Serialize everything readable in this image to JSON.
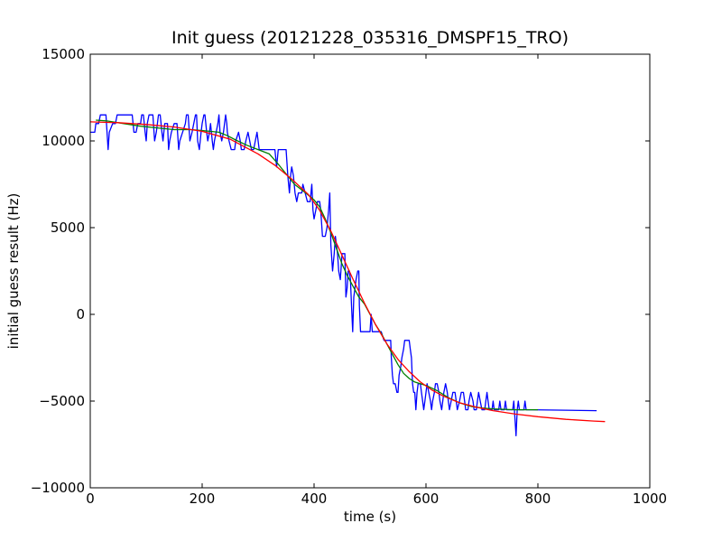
{
  "chart_data": {
    "type": "line",
    "title": "Init guess (20121228_035316_DMSPF15_TRO)",
    "xlabel": "time (s)",
    "ylabel": "initial guess result (Hz)",
    "xlim": [
      0,
      1000
    ],
    "ylim": [
      -10000,
      15000
    ],
    "xticks": [
      0,
      200,
      400,
      600,
      800,
      1000
    ],
    "yticks": [
      -10000,
      -5000,
      0,
      5000,
      10000,
      15000
    ],
    "grid": false,
    "colors": {
      "raw": "#0000ff",
      "smooth": "#008000",
      "fit": "#ff0000"
    },
    "series": [
      {
        "color": "#0000ff",
        "points": [
          [
            0,
            10500
          ],
          [
            8,
            10500
          ],
          [
            10,
            11000
          ],
          [
            15,
            11000
          ],
          [
            18,
            11500
          ],
          [
            28,
            11500
          ],
          [
            30,
            10500
          ],
          [
            32,
            9500
          ],
          [
            34,
            10500
          ],
          [
            40,
            11000
          ],
          [
            45,
            11000
          ],
          [
            48,
            11500
          ],
          [
            75,
            11500
          ],
          [
            78,
            10500
          ],
          [
            82,
            10500
          ],
          [
            85,
            11000
          ],
          [
            90,
            11000
          ],
          [
            92,
            11500
          ],
          [
            95,
            11500
          ],
          [
            98,
            10500
          ],
          [
            100,
            10000
          ],
          [
            102,
            11000
          ],
          [
            105,
            11500
          ],
          [
            112,
            11500
          ],
          [
            115,
            10000
          ],
          [
            118,
            10500
          ],
          [
            120,
            11000
          ],
          [
            122,
            11500
          ],
          [
            125,
            11500
          ],
          [
            128,
            10500
          ],
          [
            130,
            10000
          ],
          [
            133,
            11000
          ],
          [
            138,
            11000
          ],
          [
            140,
            9500
          ],
          [
            142,
            10000
          ],
          [
            145,
            10500
          ],
          [
            150,
            11000
          ],
          [
            155,
            11000
          ],
          [
            158,
            9500
          ],
          [
            160,
            10000
          ],
          [
            165,
            10500
          ],
          [
            170,
            11000
          ],
          [
            172,
            11500
          ],
          [
            175,
            11500
          ],
          [
            178,
            10000
          ],
          [
            182,
            10500
          ],
          [
            185,
            11000
          ],
          [
            188,
            11500
          ],
          [
            190,
            11500
          ],
          [
            192,
            10000
          ],
          [
            195,
            9500
          ],
          [
            198,
            10500
          ],
          [
            200,
            11000
          ],
          [
            203,
            11500
          ],
          [
            205,
            11500
          ],
          [
            208,
            10500
          ],
          [
            210,
            10000
          ],
          [
            213,
            10500
          ],
          [
            215,
            11000
          ],
          [
            218,
            10000
          ],
          [
            220,
            9500
          ],
          [
            222,
            10000
          ],
          [
            225,
            10500
          ],
          [
            228,
            11000
          ],
          [
            230,
            11500
          ],
          [
            232,
            10500
          ],
          [
            235,
            10000
          ],
          [
            238,
            10500
          ],
          [
            240,
            11000
          ],
          [
            242,
            11500
          ],
          [
            244,
            11000
          ],
          [
            245,
            10500
          ],
          [
            248,
            10000
          ],
          [
            252,
            9500
          ],
          [
            258,
            9500
          ],
          [
            260,
            10000
          ],
          [
            265,
            10500
          ],
          [
            268,
            10000
          ],
          [
            270,
            9500
          ],
          [
            275,
            9500
          ],
          [
            278,
            10000
          ],
          [
            282,
            10500
          ],
          [
            285,
            10000
          ],
          [
            288,
            9500
          ],
          [
            292,
            9500
          ],
          [
            295,
            10000
          ],
          [
            298,
            10500
          ],
          [
            300,
            10000
          ],
          [
            302,
            9500
          ],
          [
            330,
            9500
          ],
          [
            333,
            8500
          ],
          [
            336,
            9500
          ],
          [
            350,
            9500
          ],
          [
            353,
            8000
          ],
          [
            356,
            7000
          ],
          [
            358,
            8000
          ],
          [
            360,
            8500
          ],
          [
            363,
            8000
          ],
          [
            366,
            7000
          ],
          [
            369,
            6500
          ],
          [
            372,
            7000
          ],
          [
            378,
            7000
          ],
          [
            380,
            7500
          ],
          [
            384,
            7000
          ],
          [
            388,
            6500
          ],
          [
            393,
            6500
          ],
          [
            396,
            7500
          ],
          [
            398,
            6000
          ],
          [
            400,
            5500
          ],
          [
            403,
            6000
          ],
          [
            406,
            6500
          ],
          [
            410,
            6500
          ],
          [
            412,
            6000
          ],
          [
            415,
            4500
          ],
          [
            418,
            4500
          ],
          [
            420,
            4500
          ],
          [
            423,
            5000
          ],
          [
            426,
            6000
          ],
          [
            428,
            7000
          ],
          [
            430,
            4000
          ],
          [
            433,
            2500
          ],
          [
            436,
            3500
          ],
          [
            438,
            4500
          ],
          [
            440,
            4000
          ],
          [
            442,
            3500
          ],
          [
            444,
            2500
          ],
          [
            447,
            2000
          ],
          [
            450,
            3500
          ],
          [
            455,
            3500
          ],
          [
            457,
            1000
          ],
          [
            459,
            1500
          ],
          [
            461,
            2500
          ],
          [
            463,
            2500
          ],
          [
            465,
            2000
          ],
          [
            467,
            500
          ],
          [
            469,
            -1000
          ],
          [
            471,
            1000
          ],
          [
            473,
            1500
          ],
          [
            475,
            2000
          ],
          [
            478,
            2500
          ],
          [
            480,
            2500
          ],
          [
            481,
            500
          ],
          [
            483,
            -1000
          ],
          [
            485,
            -1000
          ],
          [
            487,
            -1000
          ],
          [
            500,
            -1000
          ],
          [
            502,
            0
          ],
          [
            504,
            -1000
          ],
          [
            506,
            -1000
          ],
          [
            515,
            -1000
          ],
          [
            520,
            -1000
          ],
          [
            525,
            -1500
          ],
          [
            528,
            -1500
          ],
          [
            530,
            -1500
          ],
          [
            532,
            -1500
          ],
          [
            537,
            -1500
          ],
          [
            538,
            -2500
          ],
          [
            540,
            -3500
          ],
          [
            542,
            -4000
          ],
          [
            545,
            -4000
          ],
          [
            548,
            -4500
          ],
          [
            550,
            -4500
          ],
          [
            552,
            -3500
          ],
          [
            555,
            -3000
          ],
          [
            557,
            -2500
          ],
          [
            560,
            -2000
          ],
          [
            562,
            -1500
          ],
          [
            570,
            -1500
          ],
          [
            572,
            -2000
          ],
          [
            574,
            -2500
          ],
          [
            576,
            -4000
          ],
          [
            578,
            -4500
          ],
          [
            580,
            -4500
          ],
          [
            582,
            -5500
          ],
          [
            584,
            -4500
          ],
          [
            586,
            -4000
          ],
          [
            590,
            -4000
          ],
          [
            592,
            -4500
          ],
          [
            594,
            -5000
          ],
          [
            596,
            -5500
          ],
          [
            598,
            -5000
          ],
          [
            600,
            -4500
          ],
          [
            602,
            -4000
          ],
          [
            605,
            -4500
          ],
          [
            608,
            -5000
          ],
          [
            610,
            -5500
          ],
          [
            612,
            -5000
          ],
          [
            615,
            -4500
          ],
          [
            617,
            -4000
          ],
          [
            620,
            -4000
          ],
          [
            623,
            -4500
          ],
          [
            625,
            -5000
          ],
          [
            628,
            -5500
          ],
          [
            630,
            -5000
          ],
          [
            632,
            -4500
          ],
          [
            635,
            -4000
          ],
          [
            638,
            -4500
          ],
          [
            640,
            -5000
          ],
          [
            642,
            -5500
          ],
          [
            645,
            -5000
          ],
          [
            648,
            -4500
          ],
          [
            652,
            -4500
          ],
          [
            654,
            -5000
          ],
          [
            656,
            -5500
          ],
          [
            660,
            -5000
          ],
          [
            663,
            -4500
          ],
          [
            667,
            -4500
          ],
          [
            669,
            -5000
          ],
          [
            671,
            -5500
          ],
          [
            675,
            -5500
          ],
          [
            677,
            -5000
          ],
          [
            680,
            -4500
          ],
          [
            684,
            -5000
          ],
          [
            686,
            -5500
          ],
          [
            690,
            -5500
          ],
          [
            692,
            -5000
          ],
          [
            694,
            -4500
          ],
          [
            697,
            -5000
          ],
          [
            700,
            -5500
          ],
          [
            705,
            -5500
          ],
          [
            707,
            -5000
          ],
          [
            709,
            -4500
          ],
          [
            711,
            -5000
          ],
          [
            713,
            -5500
          ],
          [
            718,
            -5500
          ],
          [
            720,
            -5000
          ],
          [
            722,
            -5500
          ],
          [
            730,
            -5500
          ],
          [
            732,
            -5000
          ],
          [
            734,
            -5500
          ],
          [
            740,
            -5500
          ],
          [
            742,
            -5000
          ],
          [
            744,
            -5500
          ],
          [
            755,
            -5500
          ],
          [
            757,
            -5000
          ],
          [
            759,
            -6000
          ],
          [
            761,
            -7000
          ],
          [
            763,
            -5500
          ],
          [
            765,
            -5000
          ],
          [
            767,
            -5500
          ],
          [
            775,
            -5500
          ],
          [
            777,
            -5000
          ],
          [
            779,
            -5500
          ],
          [
            790,
            -5500
          ],
          [
            905,
            -5550
          ]
        ]
      },
      {
        "color": "#008000",
        "points": [
          [
            10,
            11200
          ],
          [
            30,
            11150
          ],
          [
            60,
            11000
          ],
          [
            90,
            10850
          ],
          [
            120,
            10750
          ],
          [
            150,
            10650
          ],
          [
            180,
            10650
          ],
          [
            200,
            10600
          ],
          [
            230,
            10500
          ],
          [
            245,
            10300
          ],
          [
            260,
            10050
          ],
          [
            280,
            9750
          ],
          [
            300,
            9500
          ],
          [
            320,
            9250
          ],
          [
            335,
            8700
          ],
          [
            350,
            8100
          ],
          [
            365,
            7500
          ],
          [
            385,
            7000
          ],
          [
            400,
            6600
          ],
          [
            410,
            6200
          ],
          [
            420,
            5500
          ],
          [
            430,
            4700
          ],
          [
            440,
            3800
          ],
          [
            450,
            2900
          ],
          [
            460,
            2200
          ],
          [
            470,
            1600
          ],
          [
            480,
            1000
          ],
          [
            490,
            600
          ],
          [
            500,
            0
          ],
          [
            510,
            -600
          ],
          [
            520,
            -1100
          ],
          [
            530,
            -1700
          ],
          [
            540,
            -2300
          ],
          [
            550,
            -2900
          ],
          [
            560,
            -3400
          ],
          [
            570,
            -3700
          ],
          [
            580,
            -3900
          ],
          [
            600,
            -4100
          ],
          [
            620,
            -4400
          ],
          [
            640,
            -4800
          ],
          [
            660,
            -5100
          ],
          [
            680,
            -5300
          ],
          [
            700,
            -5400
          ],
          [
            720,
            -5450
          ],
          [
            760,
            -5500
          ],
          [
            800,
            -5500
          ]
        ]
      },
      {
        "color": "#ff0000",
        "points": [
          [
            0,
            11100
          ],
          [
            50,
            11050
          ],
          [
            100,
            10950
          ],
          [
            150,
            10800
          ],
          [
            200,
            10550
          ],
          [
            250,
            10100
          ],
          [
            300,
            9250
          ],
          [
            330,
            8600
          ],
          [
            360,
            7800
          ],
          [
            390,
            6900
          ],
          [
            410,
            6000
          ],
          [
            430,
            4800
          ],
          [
            450,
            3400
          ],
          [
            470,
            2000
          ],
          [
            490,
            650
          ],
          [
            510,
            -600
          ],
          [
            530,
            -1700
          ],
          [
            550,
            -2600
          ],
          [
            570,
            -3300
          ],
          [
            590,
            -3900
          ],
          [
            610,
            -4350
          ],
          [
            630,
            -4700
          ],
          [
            660,
            -5100
          ],
          [
            690,
            -5350
          ],
          [
            720,
            -5550
          ],
          [
            760,
            -5750
          ],
          [
            800,
            -5900
          ],
          [
            850,
            -6050
          ],
          [
            900,
            -6150
          ],
          [
            920,
            -6180
          ]
        ]
      }
    ]
  }
}
